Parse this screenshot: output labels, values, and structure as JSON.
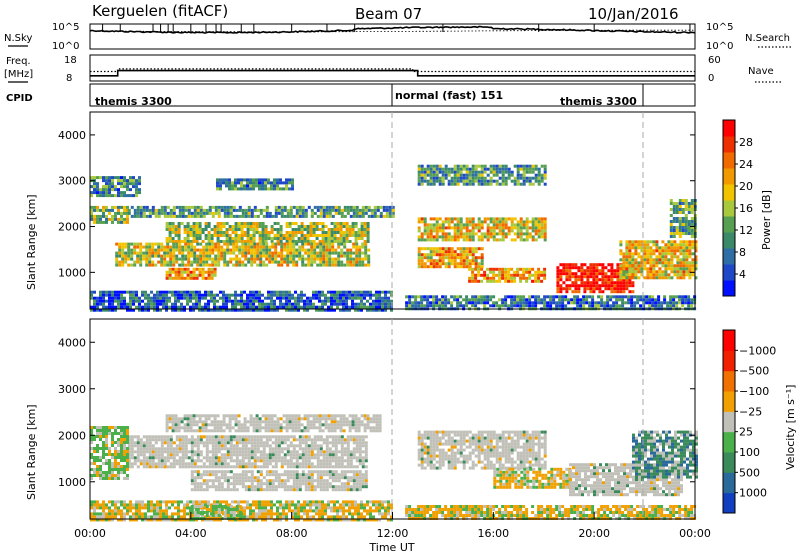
{
  "header": {
    "station": "Kerguelen (fitACF)",
    "beam": "Beam 07",
    "date": "10/Jan/2016"
  },
  "nsky_panel": {
    "left_label": "N.Sky",
    "right_label": "N.Search",
    "left_ticks": [
      "10^5",
      "10^0"
    ],
    "right_ticks": [
      "10^5",
      "10^0"
    ]
  },
  "freq_panel": {
    "left_label_1": "Freq.",
    "left_label_2": "[MHz]",
    "right_label": "Nave",
    "left_ticks": [
      "18",
      "8"
    ],
    "right_ticks": [
      "60",
      "0"
    ],
    "freq_mhz": [
      {
        "from_hour": 0,
        "to_hour": 1.1,
        "value": 10
      },
      {
        "from_hour": 1.1,
        "to_hour": 13.0,
        "value": 12
      },
      {
        "from_hour": 13.0,
        "to_hour": 24.0,
        "value": 10
      }
    ],
    "nave": [
      {
        "from_hour": 0,
        "to_hour": 1.1,
        "value": 22
      },
      {
        "from_hour": 1.1,
        "to_hour": 12.8,
        "value": 28
      },
      {
        "from_hour": 12.8,
        "to_hour": 24.0,
        "value": 22
      }
    ]
  },
  "cpid_panel": {
    "label": "CPID",
    "segments": [
      {
        "start_hour": 0,
        "text": "themis 3300"
      },
      {
        "start_hour": 12,
        "text": "normal (fast) 151"
      },
      {
        "start_hour": 22,
        "text": "themis 3300"
      }
    ]
  },
  "chart_data": [
    {
      "type": "heatmap",
      "ylabel": "Slant Range [km]",
      "yticks": [
        "1000",
        "2000",
        "3000",
        "4000"
      ],
      "ylim": [
        200,
        4500
      ],
      "xlim_hours": [
        0,
        24
      ],
      "colorbar": {
        "label": "Power [dB]",
        "ticks": [
          "4",
          "8",
          "12",
          "16",
          "20",
          "24",
          "28"
        ],
        "colors": [
          "#0010ff",
          "#1f48c8",
          "#2e6ea4",
          "#3a8a6a",
          "#57a052",
          "#a8c93c",
          "#f2c400",
          "#f09a00",
          "#f06a00",
          "#ee3000",
          "#ff0000"
        ]
      },
      "regions": [
        {
          "h": [
            0,
            1.5
          ],
          "km": [
            2100,
            2450
          ],
          "level": 0.45
        },
        {
          "h": [
            1.5,
            12.0
          ],
          "km": [
            2200,
            2450
          ],
          "level": 0.35
        },
        {
          "h": [
            3.0,
            11.0
          ],
          "km": [
            1700,
            2100
          ],
          "level": 0.5
        },
        {
          "h": [
            1.0,
            11.0
          ],
          "km": [
            1150,
            1650
          ],
          "level": 0.55
        },
        {
          "h": [
            3.0,
            5.0
          ],
          "km": [
            850,
            1100
          ],
          "level": 0.7
        },
        {
          "h": [
            0,
            2.0
          ],
          "km": [
            2700,
            3100
          ],
          "level": 0.3
        },
        {
          "h": [
            5.0,
            8.0
          ],
          "km": [
            2800,
            3050
          ],
          "level": 0.3
        },
        {
          "h": [
            0,
            12.0
          ],
          "km": [
            200,
            600
          ],
          "level": 0.2
        },
        {
          "h": [
            13.0,
            18.0
          ],
          "km": [
            1700,
            2200
          ],
          "level": 0.6
        },
        {
          "h": [
            13.0,
            15.5
          ],
          "km": [
            1150,
            1550
          ],
          "level": 0.65
        },
        {
          "h": [
            15.0,
            18.0
          ],
          "km": [
            800,
            1100
          ],
          "level": 0.7
        },
        {
          "h": [
            13.0,
            18.0
          ],
          "km": [
            2900,
            3350
          ],
          "level": 0.35
        },
        {
          "h": [
            18.5,
            21.5
          ],
          "km": [
            600,
            1200
          ],
          "level": 0.95
        },
        {
          "h": [
            21.0,
            24.0
          ],
          "km": [
            900,
            1700
          ],
          "level": 0.6
        },
        {
          "h": [
            23.0,
            24.0
          ],
          "km": [
            1800,
            2600
          ],
          "level": 0.4
        },
        {
          "h": [
            12.5,
            24.0
          ],
          "km": [
            200,
            500
          ],
          "level": 0.25
        }
      ]
    },
    {
      "type": "heatmap",
      "ylabel": "Slant Range [km]",
      "yticks": [
        "1000",
        "2000",
        "3000",
        "4000"
      ],
      "ylim": [
        200,
        4500
      ],
      "xlim_hours": [
        0,
        24
      ],
      "xticks": [
        "00:00",
        "04:00",
        "08:00",
        "12:00",
        "16:00",
        "20:00",
        "00:00"
      ],
      "xlabel": "Time UT",
      "colorbar": {
        "label": "Velocity [m s⁻¹]",
        "ticks": [
          "1000",
          "500",
          "100",
          "25",
          "−25",
          "−100",
          "−500",
          "−1000"
        ],
        "colors": [
          "#1040c0",
          "#2a6a9a",
          "#3a8a5a",
          "#4ab04a",
          "#c0c0b8",
          "#f0a000",
          "#f07000",
          "#f02000",
          "#ff0000"
        ]
      },
      "regions": [
        {
          "h": [
            3.0,
            11.5
          ],
          "km": [
            2100,
            2450
          ],
          "vel": 0
        },
        {
          "h": [
            1.5,
            11.0
          ],
          "km": [
            1300,
            2000
          ],
          "vel": 0
        },
        {
          "h": [
            4.0,
            11.0
          ],
          "km": [
            800,
            1250
          ],
          "vel": 0
        },
        {
          "h": [
            0,
            1.5
          ],
          "km": [
            1100,
            2200
          ],
          "vel": 1
        },
        {
          "h": [
            0,
            12.0
          ],
          "km": [
            200,
            600
          ],
          "vel": -1
        },
        {
          "h": [
            4.0,
            6.0
          ],
          "km": [
            200,
            500
          ],
          "vel": 1
        },
        {
          "h": [
            13.0,
            18.0
          ],
          "km": [
            1300,
            2100
          ],
          "vel": 0
        },
        {
          "h": [
            16.0,
            19.0
          ],
          "km": [
            900,
            1300
          ],
          "vel": -1
        },
        {
          "h": [
            19.0,
            23.5
          ],
          "km": [
            700,
            1400
          ],
          "vel": 0
        },
        {
          "h": [
            21.5,
            24.0
          ],
          "km": [
            1100,
            2100
          ],
          "vel": 2
        },
        {
          "h": [
            12.5,
            24.0
          ],
          "km": [
            200,
            500
          ],
          "vel": -1
        }
      ]
    }
  ]
}
